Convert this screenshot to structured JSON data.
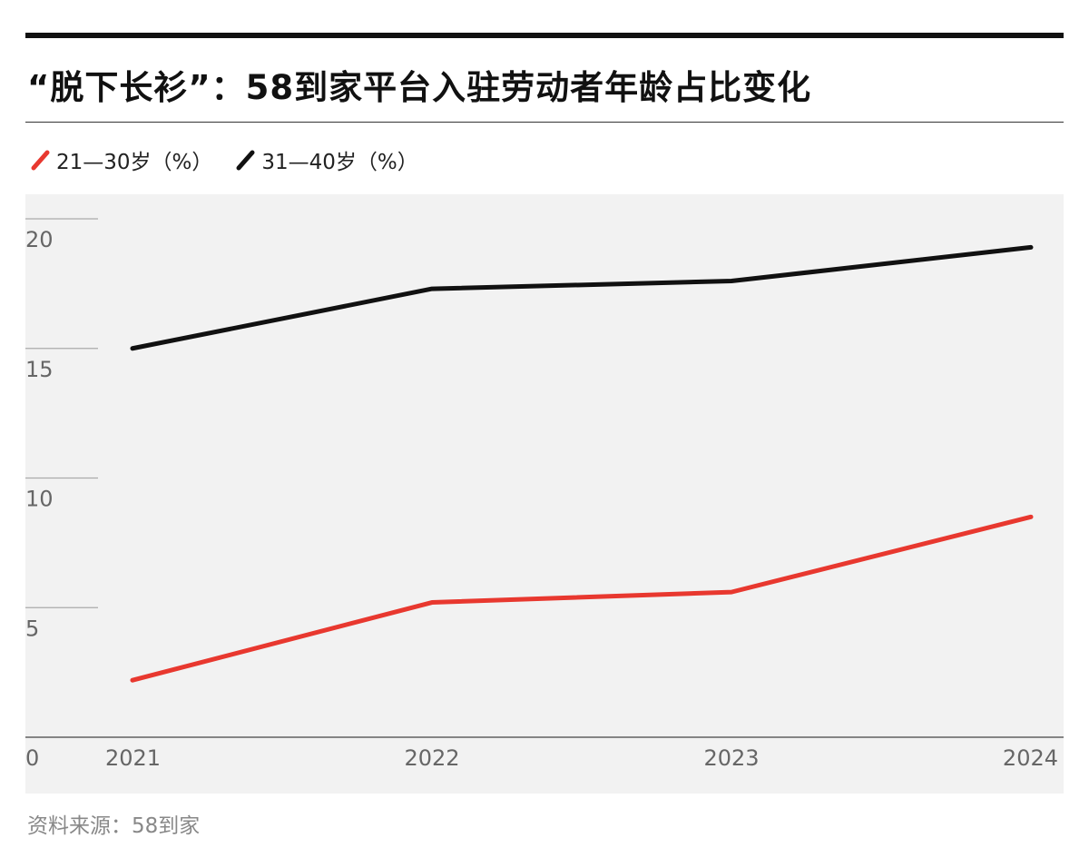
{
  "title": "“脱下长衫”：58到家平台入驻劳动者年龄占比变化",
  "source": "资料来源：58到家",
  "colors": {
    "series_21_30": "#e8382f",
    "series_31_40": "#111111",
    "background": "#f2f2f2"
  },
  "legend": [
    {
      "label": "21—30岁（%）",
      "color": "#e8382f"
    },
    {
      "label": "31—40岁（%）",
      "color": "#111111"
    }
  ],
  "chart_data": {
    "type": "line",
    "title": "“脱下长衫”：58到家平台入驻劳动者年龄占比变化",
    "x": [
      "2021",
      "2022",
      "2023",
      "2024"
    ],
    "series": [
      {
        "name": "21—30岁（%）",
        "values": [
          2.2,
          5.2,
          5.6,
          8.5
        ],
        "color": "#e8382f"
      },
      {
        "name": "31—40岁（%）",
        "values": [
          15.0,
          17.3,
          17.6,
          18.9
        ],
        "color": "#111111"
      }
    ],
    "yticks": [
      0,
      5,
      10,
      15,
      20
    ],
    "ylim": [
      0,
      20
    ],
    "grid": true,
    "legend_position": "top-left",
    "xlabel": "",
    "ylabel": ""
  }
}
